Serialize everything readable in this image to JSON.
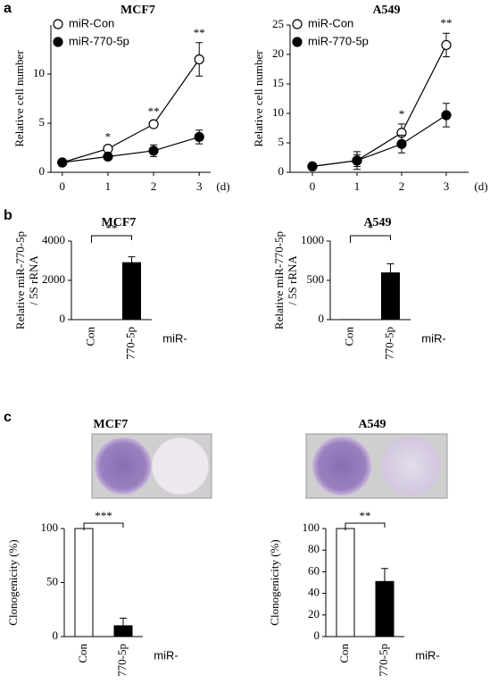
{
  "panel_labels": [
    "a",
    "b",
    "c"
  ],
  "chart_data": [
    {
      "type": "line",
      "title": "MCF7",
      "ylabel": [
        "Relative cell number"
      ],
      "xlabel": "(d)",
      "x": [
        0,
        1,
        2,
        3
      ],
      "series": [
        {
          "name": "miR-Con",
          "color": "#ffffff",
          "values": [
            1,
            2.4,
            4.9,
            11.5
          ],
          "errors": [
            0.1,
            0.2,
            0.3,
            1.7
          ]
        },
        {
          "name": "miR-770-5p",
          "color": "#000000",
          "values": [
            1,
            1.6,
            2.2,
            3.6
          ],
          "errors": [
            0.1,
            0.2,
            0.6,
            0.7
          ]
        }
      ],
      "significance": [
        null,
        "*",
        "**",
        "**"
      ],
      "xlim": [
        -0.25,
        3.25
      ],
      "xticks": [
        0,
        1,
        2,
        3
      ],
      "ylim": [
        0,
        15
      ],
      "yticks": [
        0,
        5,
        10
      ]
    },
    {
      "type": "line",
      "title": "A549",
      "ylabel": [
        "Relative cell number"
      ],
      "xlabel": "(d)",
      "x": [
        0,
        1,
        2,
        3
      ],
      "series": [
        {
          "name": "miR-Con",
          "color": "#ffffff",
          "values": [
            1,
            2,
            6.7,
            21.6
          ],
          "errors": [
            0.2,
            1.5,
            1.5,
            2
          ]
        },
        {
          "name": "miR-770-5p",
          "color": "#000000",
          "values": [
            1,
            2,
            4.8,
            9.7
          ],
          "errors": [
            0.2,
            1,
            1.5,
            2
          ]
        }
      ],
      "significance": [
        null,
        null,
        "*",
        "**"
      ],
      "xlim": [
        -0.5,
        3.5
      ],
      "xticks": [
        0,
        1,
        2,
        3
      ],
      "ylim": [
        0,
        25
      ],
      "yticks": [
        0,
        5,
        10,
        15,
        20,
        25
      ]
    },
    {
      "type": "bar",
      "title": "MCF7",
      "ylabel": [
        "Relative miR-770-5p",
        "/ 5S rRNA"
      ],
      "xlabel": "miR-",
      "categories": [
        "Con",
        "770-5p"
      ],
      "values": [
        1,
        2900
      ],
      "errors": [
        0,
        300
      ],
      "colors": [
        "#ffffff",
        "#000000"
      ],
      "significance": "**",
      "ylim": [
        0,
        4000
      ],
      "yticks": [
        0,
        2000,
        4000
      ]
    },
    {
      "type": "bar",
      "title": "A549",
      "ylabel": [
        "Relative miR-770-5p",
        "/ 5S rRNA"
      ],
      "xlabel": "miR-",
      "categories": [
        "Con",
        "770-5p"
      ],
      "values": [
        1,
        595
      ],
      "errors": [
        0,
        115
      ],
      "colors": [
        "#ffffff",
        "#000000"
      ],
      "significance": "*",
      "ylim": [
        0,
        1000
      ],
      "yticks": [
        0,
        500,
        1000
      ]
    },
    {
      "type": "bar",
      "title": "MCF7",
      "ylabel": [
        "Clonogenicity (%)"
      ],
      "xlabel": "miR-",
      "categories": [
        "Con",
        "770-5p"
      ],
      "values": [
        100,
        10
      ],
      "errors": [
        0,
        7
      ],
      "colors": [
        "#ffffff",
        "#000000"
      ],
      "significance": "***",
      "ylim": [
        0,
        100
      ],
      "yticks": [
        0,
        50,
        100
      ]
    },
    {
      "type": "bar",
      "title": "A549",
      "ylabel": [
        "Clonogenicity (%)"
      ],
      "xlabel": "miR-",
      "categories": [
        "Con",
        "770-5p"
      ],
      "values": [
        100,
        51
      ],
      "errors": [
        0,
        12
      ],
      "colors": [
        "#ffffff",
        "#000000"
      ],
      "significance": "**",
      "ylim": [
        0,
        100
      ],
      "yticks": [
        0,
        20,
        40,
        60,
        80,
        100
      ]
    }
  ]
}
